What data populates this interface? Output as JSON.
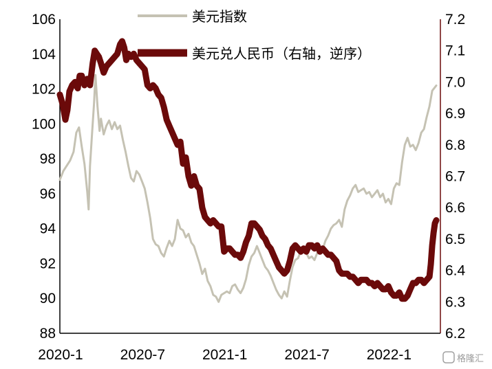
{
  "chart_data": {
    "type": "line",
    "title": "",
    "left_axis": {
      "ticks": [
        "106",
        "104",
        "102",
        "100",
        "98",
        "96",
        "94",
        "92",
        "90",
        "88"
      ],
      "ylim": [
        88,
        106
      ]
    },
    "right_axis": {
      "ticks": [
        "7.2",
        "7.1",
        "7.0",
        "6.9",
        "6.8",
        "6.7",
        "6.6",
        "6.5",
        "6.4",
        "6.3",
        "6.2"
      ],
      "ylim": [
        6.2,
        7.2
      ],
      "inverted_on_plot": true,
      "axis_color": "#6b0a0a"
    },
    "x_axis": {
      "ticks": [
        "2020-1",
        "2020-7",
        "2021-1",
        "2021-7",
        "2022-1"
      ],
      "tick_values": [
        0,
        6,
        12,
        18,
        24
      ],
      "xlim": [
        0,
        27.8
      ],
      "x_unit": "months since 2020-1"
    },
    "legend": {
      "placement": "top",
      "items": [
        {
          "label": "美元指数",
          "color": "#c5c2b3"
        },
        {
          "label": "美元兑人民币（右轴，逆序）",
          "color": "#6b0a0a"
        }
      ]
    },
    "grid": false,
    "series": [
      {
        "name": "美元指数",
        "axis": "left",
        "color": "#c5c2b3",
        "points": [
          [
            0.0,
            96.8
          ],
          [
            0.25,
            97.3
          ],
          [
            0.5,
            97.6
          ],
          [
            0.75,
            97.9
          ],
          [
            1.0,
            98.4
          ],
          [
            1.2,
            99.5
          ],
          [
            1.4,
            99.8
          ],
          [
            1.6,
            98.7
          ],
          [
            1.8,
            97.7
          ],
          [
            2.0,
            96.1
          ],
          [
            2.1,
            95.1
          ],
          [
            2.2,
            97.6
          ],
          [
            2.35,
            99.4
          ],
          [
            2.5,
            101.2
          ],
          [
            2.6,
            102.8
          ],
          [
            2.75,
            101.0
          ],
          [
            2.9,
            99.6
          ],
          [
            3.0,
            100.3
          ],
          [
            3.2,
            99.4
          ],
          [
            3.4,
            99.9
          ],
          [
            3.6,
            100.2
          ],
          [
            3.8,
            99.7
          ],
          [
            4.0,
            100.1
          ],
          [
            4.2,
            99.7
          ],
          [
            4.4,
            99.9
          ],
          [
            4.6,
            99.1
          ],
          [
            4.8,
            98.4
          ],
          [
            5.0,
            97.6
          ],
          [
            5.2,
            96.9
          ],
          [
            5.4,
            96.7
          ],
          [
            5.6,
            97.3
          ],
          [
            5.8,
            97.1
          ],
          [
            6.0,
            96.7
          ],
          [
            6.2,
            96.3
          ],
          [
            6.4,
            95.5
          ],
          [
            6.6,
            94.6
          ],
          [
            6.8,
            93.4
          ],
          [
            7.0,
            93.1
          ],
          [
            7.2,
            93.0
          ],
          [
            7.4,
            92.6
          ],
          [
            7.6,
            92.4
          ],
          [
            7.8,
            92.9
          ],
          [
            8.0,
            93.3
          ],
          [
            8.2,
            93.0
          ],
          [
            8.4,
            93.4
          ],
          [
            8.6,
            94.5
          ],
          [
            8.8,
            94.0
          ],
          [
            9.0,
            93.9
          ],
          [
            9.2,
            93.5
          ],
          [
            9.4,
            93.7
          ],
          [
            9.6,
            93.2
          ],
          [
            9.8,
            93.0
          ],
          [
            10.0,
            92.5
          ],
          [
            10.2,
            92.0
          ],
          [
            10.4,
            91.4
          ],
          [
            10.6,
            91.7
          ],
          [
            10.8,
            91.0
          ],
          [
            11.0,
            90.7
          ],
          [
            11.2,
            90.2
          ],
          [
            11.4,
            90.1
          ],
          [
            11.6,
            89.8
          ],
          [
            11.8,
            90.2
          ],
          [
            12.0,
            90.3
          ],
          [
            12.2,
            90.4
          ],
          [
            12.4,
            90.3
          ],
          [
            12.6,
            90.7
          ],
          [
            12.8,
            90.8
          ],
          [
            13.0,
            90.5
          ],
          [
            13.2,
            90.3
          ],
          [
            13.4,
            90.6
          ],
          [
            13.6,
            91.1
          ],
          [
            13.8,
            91.9
          ],
          [
            14.0,
            92.4
          ],
          [
            14.2,
            92.6
          ],
          [
            14.4,
            93.0
          ],
          [
            14.6,
            92.6
          ],
          [
            14.8,
            92.2
          ],
          [
            15.0,
            91.8
          ],
          [
            15.2,
            91.6
          ],
          [
            15.4,
            91.3
          ],
          [
            15.6,
            90.9
          ],
          [
            15.8,
            90.5
          ],
          [
            16.0,
            90.2
          ],
          [
            16.2,
            90.0
          ],
          [
            16.4,
            90.4
          ],
          [
            16.6,
            90.1
          ],
          [
            16.8,
            91.0
          ],
          [
            17.0,
            91.8
          ],
          [
            17.2,
            92.2
          ],
          [
            17.4,
            92.3
          ],
          [
            17.6,
            92.7
          ],
          [
            17.8,
            92.9
          ],
          [
            18.0,
            92.6
          ],
          [
            18.2,
            92.3
          ],
          [
            18.4,
            92.4
          ],
          [
            18.6,
            92.2
          ],
          [
            18.8,
            92.6
          ],
          [
            19.0,
            92.9
          ],
          [
            19.2,
            92.8
          ],
          [
            19.4,
            93.3
          ],
          [
            19.6,
            93.6
          ],
          [
            19.8,
            94.0
          ],
          [
            20.0,
            94.2
          ],
          [
            20.2,
            94.3
          ],
          [
            20.4,
            94.5
          ],
          [
            20.6,
            94.1
          ],
          [
            20.8,
            95.1
          ],
          [
            21.0,
            95.6
          ],
          [
            21.2,
            95.9
          ],
          [
            21.4,
            96.3
          ],
          [
            21.6,
            96.5
          ],
          [
            21.8,
            96.1
          ],
          [
            22.0,
            96.2
          ],
          [
            22.2,
            96.3
          ],
          [
            22.4,
            96.0
          ],
          [
            22.6,
            96.1
          ],
          [
            22.8,
            95.8
          ],
          [
            23.0,
            96.0
          ],
          [
            23.2,
            96.2
          ],
          [
            23.4,
            95.8
          ],
          [
            23.6,
            96.0
          ],
          [
            23.8,
            95.5
          ],
          [
            24.0,
            95.7
          ],
          [
            24.2,
            95.4
          ],
          [
            24.4,
            96.3
          ],
          [
            24.6,
            96.6
          ],
          [
            24.8,
            96.5
          ],
          [
            25.0,
            97.8
          ],
          [
            25.2,
            98.8
          ],
          [
            25.4,
            99.2
          ],
          [
            25.6,
            98.7
          ],
          [
            25.8,
            98.8
          ],
          [
            26.0,
            98.5
          ],
          [
            26.2,
            98.9
          ],
          [
            26.4,
            99.5
          ],
          [
            26.6,
            99.7
          ],
          [
            26.8,
            100.4
          ],
          [
            27.0,
            101.0
          ],
          [
            27.2,
            101.9
          ],
          [
            27.5,
            102.2
          ]
        ]
      },
      {
        "name": "美元兑人民币（右轴，逆序）",
        "axis": "right",
        "color": "#6b0a0a",
        "points": [
          [
            0.0,
            6.96
          ],
          [
            0.2,
            6.93
          ],
          [
            0.4,
            6.88
          ],
          [
            0.55,
            6.91
          ],
          [
            0.7,
            6.97
          ],
          [
            0.9,
            6.99
          ],
          [
            1.1,
            7.0
          ],
          [
            1.3,
            6.98
          ],
          [
            1.45,
            7.02
          ],
          [
            1.6,
            7.02
          ],
          [
            1.8,
            6.99
          ],
          [
            2.0,
            7.01
          ],
          [
            2.2,
            6.99
          ],
          [
            2.4,
            7.06
          ],
          [
            2.55,
            7.1
          ],
          [
            2.7,
            7.09
          ],
          [
            2.85,
            7.08
          ],
          [
            3.0,
            7.06
          ],
          [
            3.2,
            7.03
          ],
          [
            3.4,
            7.05
          ],
          [
            3.6,
            7.06
          ],
          [
            3.8,
            7.07
          ],
          [
            4.0,
            7.08
          ],
          [
            4.2,
            7.09
          ],
          [
            4.4,
            7.12
          ],
          [
            4.55,
            7.13
          ],
          [
            4.7,
            7.11
          ],
          [
            4.85,
            7.07
          ],
          [
            5.0,
            7.09
          ],
          [
            5.2,
            7.08
          ],
          [
            5.4,
            7.09
          ],
          [
            5.6,
            7.07
          ],
          [
            5.8,
            7.06
          ],
          [
            6.0,
            7.05
          ],
          [
            6.2,
            7.04
          ],
          [
            6.4,
            6.99
          ],
          [
            6.6,
            6.98
          ],
          [
            6.8,
            6.99
          ],
          [
            7.0,
            6.98
          ],
          [
            7.2,
            6.96
          ],
          [
            7.4,
            6.95
          ],
          [
            7.6,
            6.92
          ],
          [
            7.8,
            6.88
          ],
          [
            8.0,
            6.86
          ],
          [
            8.2,
            6.84
          ],
          [
            8.4,
            6.82
          ],
          [
            8.6,
            6.8
          ],
          [
            8.8,
            6.81
          ],
          [
            9.0,
            6.74
          ],
          [
            9.2,
            6.76
          ],
          [
            9.4,
            6.7
          ],
          [
            9.6,
            6.67
          ],
          [
            9.8,
            6.7
          ],
          [
            10.0,
            6.67
          ],
          [
            10.2,
            6.66
          ],
          [
            10.4,
            6.6
          ],
          [
            10.6,
            6.57
          ],
          [
            10.8,
            6.56
          ],
          [
            11.0,
            6.55
          ],
          [
            11.2,
            6.56
          ],
          [
            11.4,
            6.55
          ],
          [
            11.6,
            6.54
          ],
          [
            11.8,
            6.54
          ],
          [
            12.0,
            6.46
          ],
          [
            12.2,
            6.47
          ],
          [
            12.4,
            6.47
          ],
          [
            12.6,
            6.46
          ],
          [
            12.8,
            6.45
          ],
          [
            13.0,
            6.45
          ],
          [
            13.2,
            6.44
          ],
          [
            13.4,
            6.46
          ],
          [
            13.6,
            6.49
          ],
          [
            13.8,
            6.51
          ],
          [
            14.0,
            6.55
          ],
          [
            14.2,
            6.55
          ],
          [
            14.4,
            6.54
          ],
          [
            14.6,
            6.53
          ],
          [
            14.8,
            6.51
          ],
          [
            15.0,
            6.5
          ],
          [
            15.2,
            6.48
          ],
          [
            15.4,
            6.47
          ],
          [
            15.6,
            6.45
          ],
          [
            15.8,
            6.43
          ],
          [
            16.0,
            6.41
          ],
          [
            16.2,
            6.4
          ],
          [
            16.4,
            6.39
          ],
          [
            16.6,
            6.4
          ],
          [
            16.8,
            6.43
          ],
          [
            17.0,
            6.47
          ],
          [
            17.2,
            6.48
          ],
          [
            17.4,
            6.47
          ],
          [
            17.6,
            6.46
          ],
          [
            17.8,
            6.47
          ],
          [
            18.0,
            6.46
          ],
          [
            18.2,
            6.48
          ],
          [
            18.4,
            6.48
          ],
          [
            18.6,
            6.47
          ],
          [
            18.8,
            6.48
          ],
          [
            19.0,
            6.46
          ],
          [
            19.2,
            6.47
          ],
          [
            19.4,
            6.46
          ],
          [
            19.6,
            6.45
          ],
          [
            19.8,
            6.45
          ],
          [
            20.0,
            6.44
          ],
          [
            20.2,
            6.43
          ],
          [
            20.4,
            6.4
          ],
          [
            20.6,
            6.39
          ],
          [
            20.8,
            6.39
          ],
          [
            21.0,
            6.39
          ],
          [
            21.2,
            6.38
          ],
          [
            21.4,
            6.38
          ],
          [
            21.6,
            6.37
          ],
          [
            21.8,
            6.36
          ],
          [
            22.0,
            6.37
          ],
          [
            22.2,
            6.37
          ],
          [
            22.4,
            6.37
          ],
          [
            22.6,
            6.36
          ],
          [
            22.8,
            6.36
          ],
          [
            23.0,
            6.35
          ],
          [
            23.2,
            6.36
          ],
          [
            23.4,
            6.35
          ],
          [
            23.6,
            6.34
          ],
          [
            23.8,
            6.34
          ],
          [
            24.0,
            6.35
          ],
          [
            24.2,
            6.33
          ],
          [
            24.4,
            6.32
          ],
          [
            24.6,
            6.32
          ],
          [
            24.8,
            6.33
          ],
          [
            25.0,
            6.31
          ],
          [
            25.2,
            6.31
          ],
          [
            25.4,
            6.32
          ],
          [
            25.6,
            6.34
          ],
          [
            25.8,
            6.36
          ],
          [
            26.0,
            6.36
          ],
          [
            26.2,
            6.37
          ],
          [
            26.4,
            6.37
          ],
          [
            26.6,
            6.36
          ],
          [
            26.8,
            6.37
          ],
          [
            27.0,
            6.38
          ],
          [
            27.1,
            6.42
          ],
          [
            27.2,
            6.48
          ],
          [
            27.3,
            6.52
          ],
          [
            27.4,
            6.55
          ],
          [
            27.5,
            6.56
          ]
        ]
      }
    ]
  },
  "watermark": "格隆汇"
}
